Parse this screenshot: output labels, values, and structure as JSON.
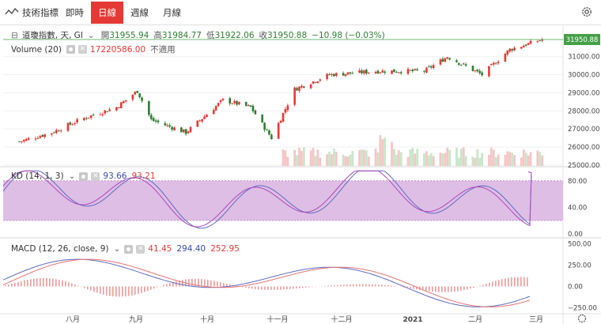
{
  "toolbar": {
    "tools_label": "技術指標",
    "tabs": [
      "即時",
      "日線",
      "週線",
      "月線"
    ],
    "active_tab": 1
  },
  "main_legend": {
    "symbol": "道瓊指數, 天, GI",
    "open_label": "開",
    "open": "31955.94",
    "high_label": "高",
    "high": "31984.77",
    "low_label": "低",
    "low": "31922.06",
    "close_label": "收",
    "close": "31950.88",
    "change": "−10.98 (−0.03%)"
  },
  "volume_legend": {
    "name": "Volume (20)",
    "value": "17220586.00",
    "extra": "不適用"
  },
  "kd_legend": {
    "name": "KD (14, 1, 3)",
    "k": "93.66",
    "d": "93.21"
  },
  "macd_legend": {
    "name": "MACD (12, 26, close, 9)",
    "hist": "41.45",
    "macd": "294.40",
    "signal": "252.95"
  },
  "price_tag": "31950.88",
  "colors": {
    "up": "#e53935",
    "down": "#2e7d32",
    "k_line": "#5c6bc0",
    "d_line": "#ab47bc",
    "kd_band": "#d9b3e0",
    "hist_up": "#ef9a9a",
    "hist_down": "#ef9a9a",
    "price_line": "#43a047"
  },
  "chart_data": [
    {
      "type": "candlestick",
      "title": "道瓊指數, 天, GI",
      "x_tick_labels": [
        "八月",
        "九月",
        "十月",
        "十一月",
        "十二月",
        "2021",
        "二月",
        "三月"
      ],
      "y_tick_labels": [
        "25000.00",
        "26000.00",
        "27000.00",
        "28000.00",
        "29000.00",
        "30000.00",
        "31000.00"
      ],
      "ylim": [
        24950,
        32300
      ],
      "approx_close_path": [
        {
          "x": "2020-07-13",
          "y": 26300
        },
        {
          "x": "2020-07-27",
          "y": 26800
        },
        {
          "x": "2020-08-10",
          "y": 27600
        },
        {
          "x": "2020-08-24",
          "y": 28200
        },
        {
          "x": "2020-09-02",
          "y": 29100
        },
        {
          "x": "2020-09-08",
          "y": 27500
        },
        {
          "x": "2020-09-23",
          "y": 26800
        },
        {
          "x": "2020-10-09",
          "y": 28600
        },
        {
          "x": "2020-10-21",
          "y": 28200
        },
        {
          "x": "2020-10-30",
          "y": 26500
        },
        {
          "x": "2020-11-09",
          "y": 29200
        },
        {
          "x": "2020-11-24",
          "y": 30000
        },
        {
          "x": "2020-12-15",
          "y": 30200
        },
        {
          "x": "2021-01-04",
          "y": 30200
        },
        {
          "x": "2021-01-14",
          "y": 31000
        },
        {
          "x": "2021-01-29",
          "y": 30000
        },
        {
          "x": "2021-02-10",
          "y": 31400
        },
        {
          "x": "2021-02-24",
          "y": 31950
        }
      ],
      "volume_value": 17220586
    },
    {
      "type": "line",
      "title": "KD (14, 1, 3)",
      "series": [
        {
          "name": "K",
          "last": 93.66
        },
        {
          "name": "D",
          "last": 93.21
        }
      ],
      "y_tick_labels": [
        "0.00",
        "40.00",
        "80.00"
      ],
      "band": [
        20,
        80
      ],
      "ylim": [
        -5,
        100
      ]
    },
    {
      "type": "bar",
      "title": "MACD (12, 26, close, 9)",
      "series": [
        {
          "name": "Histogram",
          "last": 41.45
        },
        {
          "name": "MACD",
          "last": 294.4
        },
        {
          "name": "Signal",
          "last": 252.95
        }
      ],
      "y_tick_labels": [
        "−250.00",
        "0.00",
        "250.00",
        "500.00"
      ],
      "ylim": [
        -310,
        560
      ]
    }
  ]
}
